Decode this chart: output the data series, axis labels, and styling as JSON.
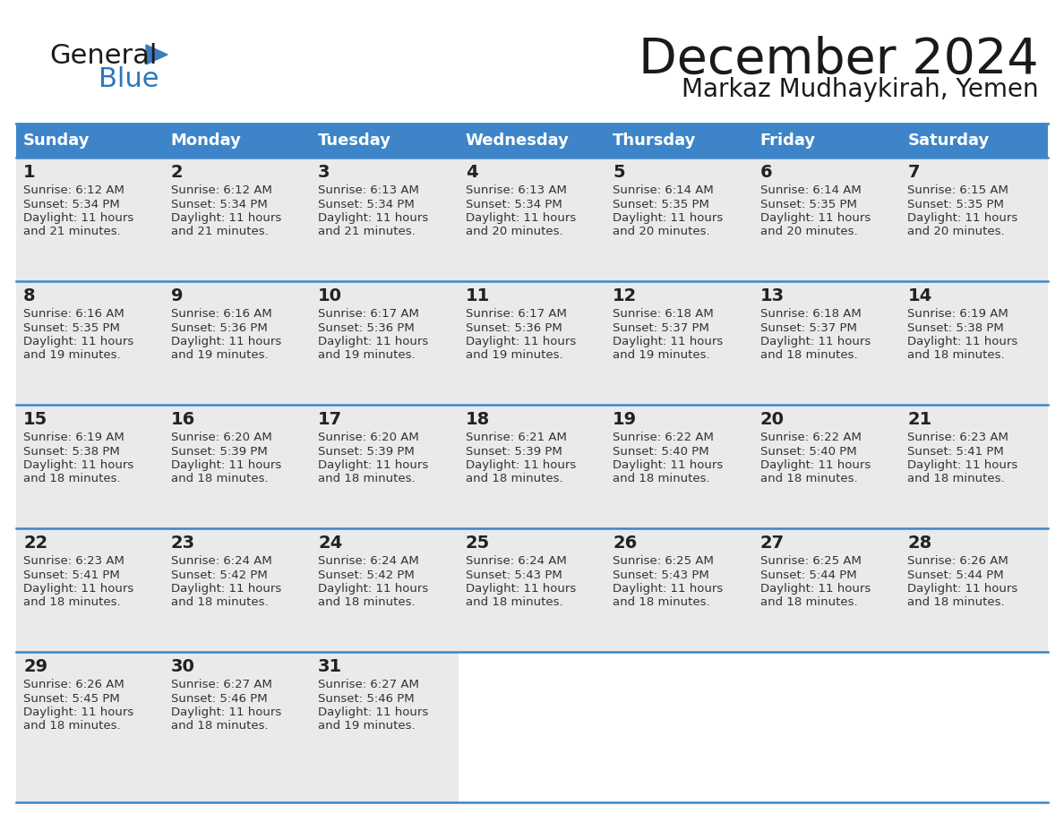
{
  "title": "December 2024",
  "subtitle": "Markaz Mudhaykirah, Yemen",
  "days_of_week": [
    "Sunday",
    "Monday",
    "Tuesday",
    "Wednesday",
    "Thursday",
    "Friday",
    "Saturday"
  ],
  "header_bg_color": "#3d85c8",
  "header_text_color": "#ffffff",
  "cell_bg_color": "#e8eaec",
  "cell_bg_empty": "#ffffff",
  "separator_color": "#3d85c8",
  "day_number_color": "#222222",
  "text_color": "#333333",
  "title_color": "#1a1a1a",
  "subtitle_color": "#1a1a1a",
  "logo_text_color": "#1a1a1a",
  "logo_blue_color": "#2878c0",
  "logo_triangle_color": "#3d7abf",
  "weeks": [
    [
      {
        "day": 1,
        "sunrise": "6:12 AM",
        "sunset": "5:34 PM",
        "daylight": "11 hours and 21 minutes."
      },
      {
        "day": 2,
        "sunrise": "6:12 AM",
        "sunset": "5:34 PM",
        "daylight": "11 hours and 21 minutes."
      },
      {
        "day": 3,
        "sunrise": "6:13 AM",
        "sunset": "5:34 PM",
        "daylight": "11 hours and 21 minutes."
      },
      {
        "day": 4,
        "sunrise": "6:13 AM",
        "sunset": "5:34 PM",
        "daylight": "11 hours and 20 minutes."
      },
      {
        "day": 5,
        "sunrise": "6:14 AM",
        "sunset": "5:35 PM",
        "daylight": "11 hours and 20 minutes."
      },
      {
        "day": 6,
        "sunrise": "6:14 AM",
        "sunset": "5:35 PM",
        "daylight": "11 hours and 20 minutes."
      },
      {
        "day": 7,
        "sunrise": "6:15 AM",
        "sunset": "5:35 PM",
        "daylight": "11 hours and 20 minutes."
      }
    ],
    [
      {
        "day": 8,
        "sunrise": "6:16 AM",
        "sunset": "5:35 PM",
        "daylight": "11 hours and 19 minutes."
      },
      {
        "day": 9,
        "sunrise": "6:16 AM",
        "sunset": "5:36 PM",
        "daylight": "11 hours and 19 minutes."
      },
      {
        "day": 10,
        "sunrise": "6:17 AM",
        "sunset": "5:36 PM",
        "daylight": "11 hours and 19 minutes."
      },
      {
        "day": 11,
        "sunrise": "6:17 AM",
        "sunset": "5:36 PM",
        "daylight": "11 hours and 19 minutes."
      },
      {
        "day": 12,
        "sunrise": "6:18 AM",
        "sunset": "5:37 PM",
        "daylight": "11 hours and 19 minutes."
      },
      {
        "day": 13,
        "sunrise": "6:18 AM",
        "sunset": "5:37 PM",
        "daylight": "11 hours and 18 minutes."
      },
      {
        "day": 14,
        "sunrise": "6:19 AM",
        "sunset": "5:38 PM",
        "daylight": "11 hours and 18 minutes."
      }
    ],
    [
      {
        "day": 15,
        "sunrise": "6:19 AM",
        "sunset": "5:38 PM",
        "daylight": "11 hours and 18 minutes."
      },
      {
        "day": 16,
        "sunrise": "6:20 AM",
        "sunset": "5:39 PM",
        "daylight": "11 hours and 18 minutes."
      },
      {
        "day": 17,
        "sunrise": "6:20 AM",
        "sunset": "5:39 PM",
        "daylight": "11 hours and 18 minutes."
      },
      {
        "day": 18,
        "sunrise": "6:21 AM",
        "sunset": "5:39 PM",
        "daylight": "11 hours and 18 minutes."
      },
      {
        "day": 19,
        "sunrise": "6:22 AM",
        "sunset": "5:40 PM",
        "daylight": "11 hours and 18 minutes."
      },
      {
        "day": 20,
        "sunrise": "6:22 AM",
        "sunset": "5:40 PM",
        "daylight": "11 hours and 18 minutes."
      },
      {
        "day": 21,
        "sunrise": "6:23 AM",
        "sunset": "5:41 PM",
        "daylight": "11 hours and 18 minutes."
      }
    ],
    [
      {
        "day": 22,
        "sunrise": "6:23 AM",
        "sunset": "5:41 PM",
        "daylight": "11 hours and 18 minutes."
      },
      {
        "day": 23,
        "sunrise": "6:24 AM",
        "sunset": "5:42 PM",
        "daylight": "11 hours and 18 minutes."
      },
      {
        "day": 24,
        "sunrise": "6:24 AM",
        "sunset": "5:42 PM",
        "daylight": "11 hours and 18 minutes."
      },
      {
        "day": 25,
        "sunrise": "6:24 AM",
        "sunset": "5:43 PM",
        "daylight": "11 hours and 18 minutes."
      },
      {
        "day": 26,
        "sunrise": "6:25 AM",
        "sunset": "5:43 PM",
        "daylight": "11 hours and 18 minutes."
      },
      {
        "day": 27,
        "sunrise": "6:25 AM",
        "sunset": "5:44 PM",
        "daylight": "11 hours and 18 minutes."
      },
      {
        "day": 28,
        "sunrise": "6:26 AM",
        "sunset": "5:44 PM",
        "daylight": "11 hours and 18 minutes."
      }
    ],
    [
      {
        "day": 29,
        "sunrise": "6:26 AM",
        "sunset": "5:45 PM",
        "daylight": "11 hours and 18 minutes."
      },
      {
        "day": 30,
        "sunrise": "6:27 AM",
        "sunset": "5:46 PM",
        "daylight": "11 hours and 18 minutes."
      },
      {
        "day": 31,
        "sunrise": "6:27 AM",
        "sunset": "5:46 PM",
        "daylight": "11 hours and 19 minutes."
      },
      null,
      null,
      null,
      null
    ]
  ]
}
